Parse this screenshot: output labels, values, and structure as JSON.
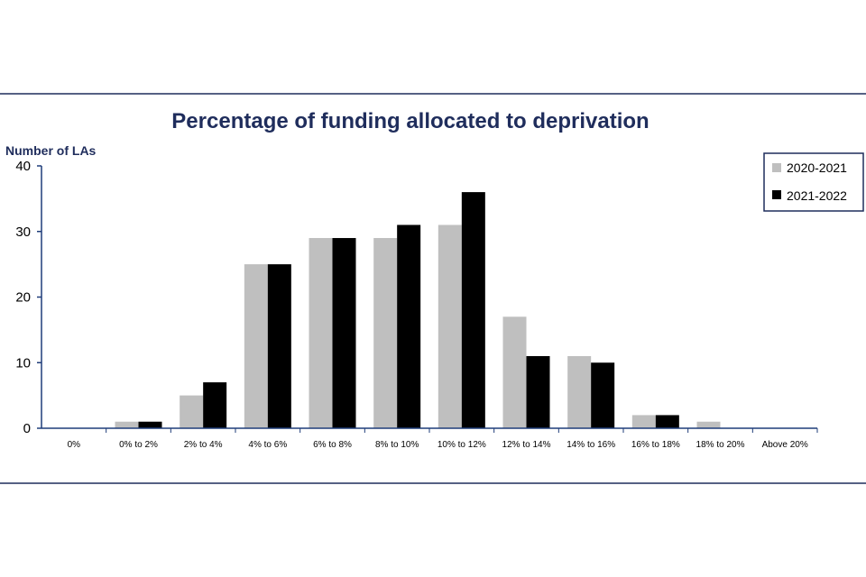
{
  "chart_data": {
    "type": "bar",
    "title": "Percentage of funding allocated to deprivation",
    "ylabel": "Number of LAs",
    "xlabel": "",
    "ylim": [
      0,
      40
    ],
    "yticks": [
      0,
      10,
      20,
      30,
      40
    ],
    "grid": false,
    "legend_position": "top-right",
    "categories": [
      "0%",
      "0% to 2%",
      "2% to 4%",
      "4% to 6%",
      "6% to 8%",
      "8% to 10%",
      "10% to 12%",
      "12% to 14%",
      "14% to 16%",
      "16% to 18%",
      "18% to 20%",
      "Above 20%"
    ],
    "series": [
      {
        "name": "2020-2021",
        "color": "#bfbfbf",
        "values": [
          0,
          1,
          5,
          25,
          29,
          29,
          31,
          17,
          11,
          2,
          1,
          0
        ]
      },
      {
        "name": "2021-2022",
        "color": "#000000",
        "values": [
          0,
          1,
          7,
          25,
          29,
          31,
          36,
          11,
          10,
          2,
          0,
          0
        ]
      }
    ]
  },
  "colors": {
    "title": "#1f2d5c",
    "axis": "#1f3d7a",
    "rule": "#1f2d5c",
    "legend_border": "#1f2d5c"
  }
}
